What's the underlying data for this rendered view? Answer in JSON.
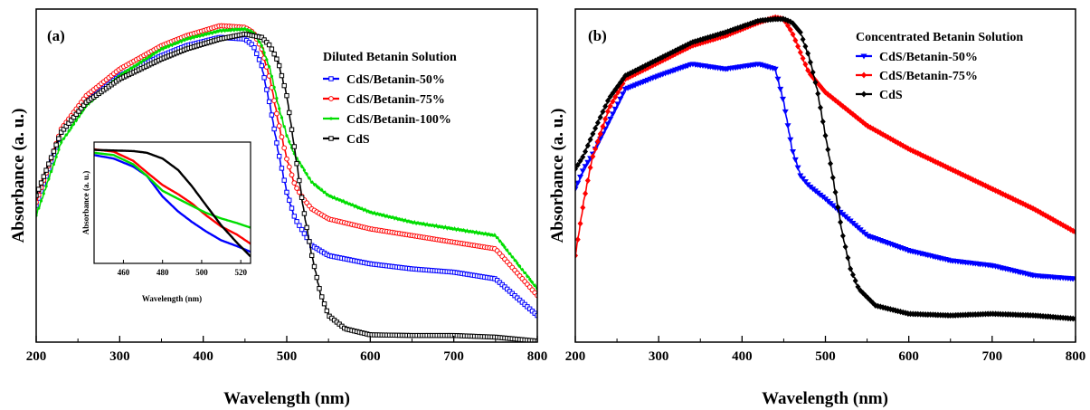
{
  "chart_data": [
    {
      "panel": "(a)",
      "type": "line",
      "xlabel": "Wavelength (nm)",
      "ylabel": "Absorbance (a. u.)",
      "xlim": [
        200,
        800
      ],
      "xticks": [
        200,
        300,
        400,
        500,
        600,
        700,
        800
      ],
      "y_tick_labels": false,
      "legend_title": "Diluted Betanin Solution",
      "legend_position": "upper-right",
      "series": [
        {
          "name": "CdS/Betanin-50%",
          "color": "#0000ff",
          "marker": "open-square",
          "x": [
            200,
            230,
            260,
            300,
            350,
            380,
            420,
            450,
            460,
            470,
            480,
            490,
            500,
            510,
            520,
            530,
            550,
            600,
            650,
            700,
            750,
            800
          ],
          "y": [
            0.41,
            0.63,
            0.72,
            0.8,
            0.86,
            0.89,
            0.915,
            0.91,
            0.89,
            0.83,
            0.71,
            0.57,
            0.45,
            0.37,
            0.33,
            0.29,
            0.26,
            0.235,
            0.22,
            0.21,
            0.19,
            0.08
          ]
        },
        {
          "name": "CdS/Betanin-75%",
          "color": "#ff0000",
          "marker": "open-circle",
          "x": [
            200,
            230,
            260,
            300,
            350,
            380,
            420,
            450,
            460,
            470,
            480,
            490,
            500,
            510,
            520,
            530,
            550,
            600,
            650,
            700,
            750,
            800
          ],
          "y": [
            0.42,
            0.64,
            0.74,
            0.82,
            0.89,
            0.92,
            0.95,
            0.945,
            0.93,
            0.88,
            0.79,
            0.66,
            0.55,
            0.47,
            0.43,
            0.4,
            0.37,
            0.34,
            0.32,
            0.3,
            0.28,
            0.14
          ]
        },
        {
          "name": "CdS/Betanin-100%",
          "color": "#00dd00",
          "marker": "small-dot",
          "x": [
            200,
            230,
            260,
            300,
            350,
            380,
            420,
            450,
            460,
            470,
            480,
            490,
            500,
            510,
            520,
            530,
            550,
            600,
            650,
            700,
            750,
            800
          ],
          "y": [
            0.38,
            0.6,
            0.71,
            0.8,
            0.88,
            0.91,
            0.935,
            0.94,
            0.93,
            0.89,
            0.82,
            0.71,
            0.62,
            0.56,
            0.52,
            0.48,
            0.44,
            0.39,
            0.36,
            0.34,
            0.32,
            0.16
          ]
        },
        {
          "name": "CdS",
          "color": "#000000",
          "marker": "open-square",
          "x": [
            200,
            230,
            260,
            300,
            350,
            380,
            420,
            450,
            470,
            480,
            490,
            500,
            510,
            520,
            530,
            540,
            550,
            570,
            600,
            650,
            700,
            750,
            800
          ],
          "y": [
            0.44,
            0.63,
            0.72,
            0.79,
            0.85,
            0.88,
            0.91,
            0.925,
            0.915,
            0.89,
            0.84,
            0.74,
            0.57,
            0.4,
            0.26,
            0.15,
            0.08,
            0.04,
            0.022,
            0.02,
            0.02,
            0.015,
            0.003
          ]
        }
      ],
      "inset": {
        "xlabel": "Wavelength (nm)",
        "ylabel": "Absorbance (a. u.)",
        "xlim": [
          445,
          525
        ],
        "xticks": [
          460,
          480,
          500,
          520
        ],
        "series": [
          {
            "name": "CdS/Betanin-50%",
            "color": "#0000ff",
            "x": [
              445,
              455,
              465,
              472,
              480,
              488,
              495,
              502,
              510,
              518,
              525
            ],
            "y": [
              0.94,
              0.91,
              0.84,
              0.76,
              0.58,
              0.45,
              0.36,
              0.28,
              0.2,
              0.15,
              0.1
            ]
          },
          {
            "name": "CdS/Betanin-75%",
            "color": "#ff0000",
            "x": [
              445,
              455,
              465,
              472,
              480,
              488,
              495,
              502,
              510,
              518,
              525
            ],
            "y": [
              0.99,
              0.97,
              0.89,
              0.79,
              0.68,
              0.6,
              0.52,
              0.42,
              0.32,
              0.25,
              0.17
            ]
          },
          {
            "name": "CdS/Betanin-100%",
            "color": "#00dd00",
            "x": [
              445,
              455,
              465,
              472,
              480,
              488,
              495,
              502,
              510,
              518,
              525
            ],
            "y": [
              0.96,
              0.94,
              0.86,
              0.76,
              0.63,
              0.56,
              0.5,
              0.44,
              0.39,
              0.35,
              0.31
            ]
          },
          {
            "name": "CdS",
            "color": "#000000",
            "x": [
              445,
              455,
              465,
              472,
              480,
              488,
              495,
              502,
              510,
              518,
              525
            ],
            "y": [
              0.985,
              0.98,
              0.975,
              0.96,
              0.91,
              0.81,
              0.67,
              0.51,
              0.33,
              0.18,
              0.06
            ]
          }
        ]
      }
    },
    {
      "panel": "(b)",
      "type": "line",
      "xlabel": "Wavelength (nm)",
      "ylabel": "Absorbance (a. u.)",
      "xlim": [
        200,
        800
      ],
      "xticks": [
        200,
        300,
        400,
        500,
        600,
        700,
        800
      ],
      "y_tick_labels": false,
      "legend_title": "Concentrated Betanin Solution",
      "legend_position": "upper-right",
      "series": [
        {
          "name": "CdS/Betanin-50%",
          "color": "#0000ff",
          "marker": "down-triangle",
          "x": [
            200,
            210,
            220,
            240,
            260,
            300,
            340,
            380,
            420,
            440,
            450,
            460,
            470,
            480,
            500,
            550,
            600,
            650,
            700,
            750,
            800
          ],
          "y": [
            0.46,
            0.52,
            0.56,
            0.66,
            0.76,
            0.8,
            0.835,
            0.82,
            0.835,
            0.82,
            0.72,
            0.58,
            0.5,
            0.47,
            0.43,
            0.32,
            0.275,
            0.245,
            0.23,
            0.2,
            0.19
          ]
        },
        {
          "name": "CdS/Betanin-75%",
          "color": "#ff0000",
          "marker": "diamond",
          "x": [
            200,
            210,
            220,
            240,
            260,
            300,
            340,
            380,
            420,
            440,
            450,
            460,
            470,
            480,
            500,
            550,
            600,
            650,
            700,
            750,
            800
          ],
          "y": [
            0.26,
            0.42,
            0.55,
            0.7,
            0.79,
            0.84,
            0.89,
            0.92,
            0.96,
            0.975,
            0.97,
            0.93,
            0.87,
            0.81,
            0.75,
            0.65,
            0.58,
            0.52,
            0.46,
            0.4,
            0.33
          ]
        },
        {
          "name": "CdS",
          "color": "#000000",
          "marker": "filled-diamond",
          "x": [
            200,
            210,
            220,
            240,
            260,
            300,
            340,
            380,
            420,
            440,
            450,
            460,
            470,
            480,
            490,
            500,
            510,
            520,
            530,
            540,
            560,
            600,
            650,
            700,
            750,
            800
          ],
          "y": [
            0.52,
            0.56,
            0.62,
            0.73,
            0.8,
            0.85,
            0.9,
            0.93,
            0.965,
            0.97,
            0.97,
            0.96,
            0.93,
            0.86,
            0.76,
            0.62,
            0.48,
            0.33,
            0.22,
            0.16,
            0.11,
            0.085,
            0.08,
            0.085,
            0.08,
            0.07
          ]
        }
      ]
    }
  ]
}
